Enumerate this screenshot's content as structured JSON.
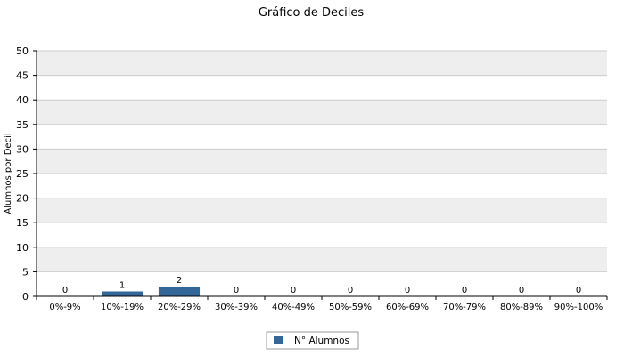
{
  "chart_data": {
    "type": "bar",
    "title": "Gráfico de Deciles",
    "xlabel": "",
    "ylabel": "Alumnos por Decil",
    "ylim": [
      0,
      50
    ],
    "yticks": [
      0,
      5,
      10,
      15,
      20,
      25,
      30,
      35,
      40,
      45,
      50
    ],
    "categories": [
      "0%-9%",
      "10%-19%",
      "20%-29%",
      "30%-39%",
      "40%-49%",
      "50%-59%",
      "60%-69%",
      "70%-79%",
      "80%-89%",
      "90%-100%"
    ],
    "series": [
      {
        "name": "N° Alumnos",
        "values": [
          0,
          1,
          2,
          0,
          0,
          0,
          0,
          0,
          0,
          0
        ],
        "color": "#336699"
      }
    ],
    "grid": true,
    "grid_band_colors": [
      "#ffffff",
      "#eeeeee"
    ],
    "legend_position": "bottom-center"
  }
}
